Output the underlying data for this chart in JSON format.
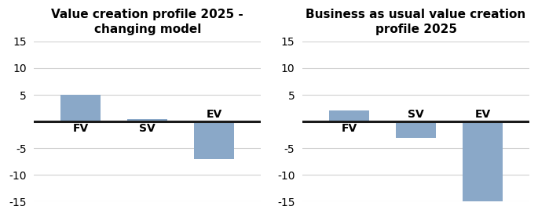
{
  "chart1": {
    "title": "Value creation profile 2025 -\nchanging model",
    "categories": [
      "FV",
      "SV",
      "EV"
    ],
    "values": [
      5,
      0.5,
      -7
    ],
    "bar_color": "#8aa8c8"
  },
  "chart2": {
    "title": "Business as usual value creation\nprofile 2025",
    "categories": [
      "FV",
      "SV",
      "EV"
    ],
    "values": [
      2,
      -3,
      -15
    ],
    "bar_color": "#8aa8c8"
  },
  "ylim": [
    -15,
    15
  ],
  "yticks": [
    -15,
    -10,
    -5,
    0,
    5,
    10,
    15
  ],
  "background_color": "#ffffff",
  "grid_color": "#d0d0d0",
  "title_fontsize": 11,
  "label_fontsize": 10,
  "tick_fontsize": 10,
  "bar_width": 0.6,
  "zeroline_lw": 2.2,
  "zeroline_color": "#1a1a1a"
}
